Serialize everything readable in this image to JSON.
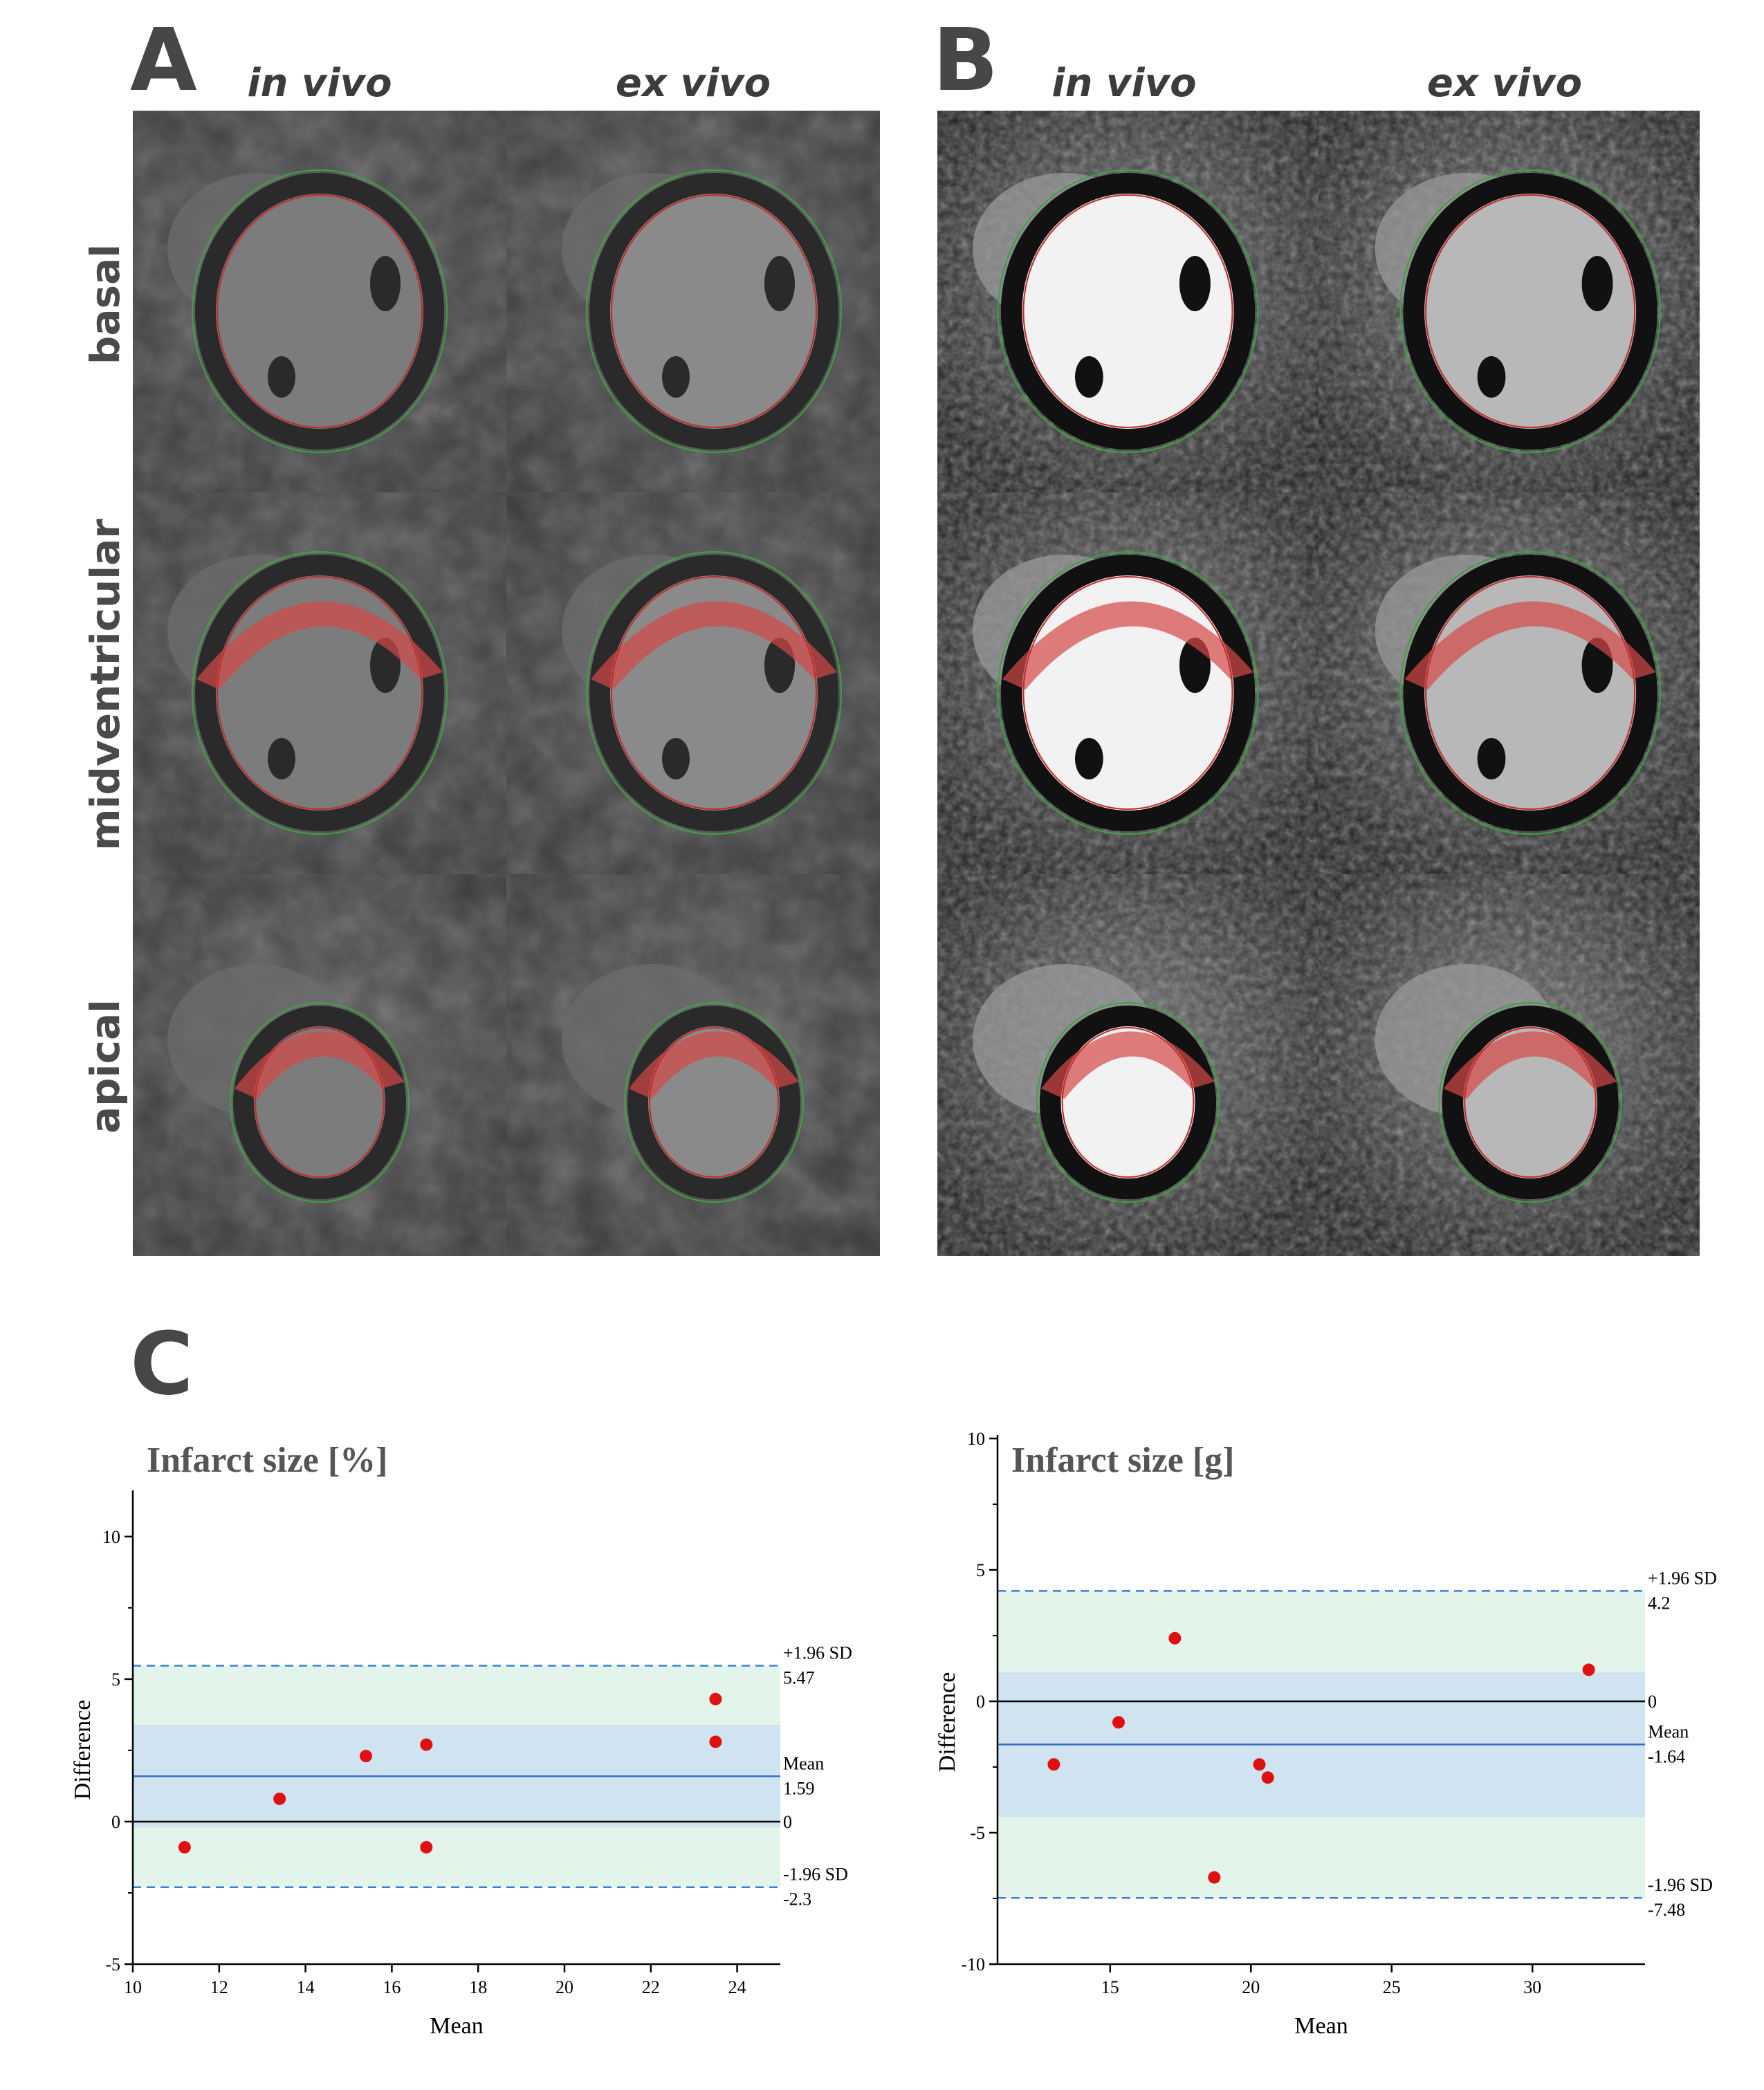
{
  "panels": {
    "A": {
      "letter": "A",
      "columns": [
        "in vivo",
        "ex vivo"
      ],
      "rows": [
        "basal",
        "midventricular",
        "apical"
      ]
    },
    "B": {
      "letter": "B",
      "columns": [
        "in vivo",
        "ex vivo"
      ]
    },
    "C": {
      "letter": "C"
    }
  },
  "colors": {
    "epicardial_contour": "#3fa33f",
    "endocardial_contour": "#c42a2a",
    "infarct": "#d44848",
    "points": "#e01010",
    "limit_line": "#3c7ed6",
    "mean_line": "#2f6fc9",
    "loa_band": "#e3f4ea",
    "mean_ci_band": "#cfe3f1"
  },
  "chart_data": [
    {
      "type": "scatter",
      "title": "Infarct size [%]",
      "xlabel": "Mean",
      "ylabel": "Difference",
      "xlim": [
        10,
        25
      ],
      "ylim": [
        -5,
        11.5
      ],
      "xticks": [
        10,
        12,
        14,
        16,
        18,
        20,
        22,
        24
      ],
      "yticks": [
        -5,
        0,
        5,
        10
      ],
      "points": [
        {
          "x": 11.2,
          "y": -0.9
        },
        {
          "x": 13.4,
          "y": 0.8
        },
        {
          "x": 15.4,
          "y": 2.3
        },
        {
          "x": 16.8,
          "y": 2.7
        },
        {
          "x": 16.8,
          "y": -0.9
        },
        {
          "x": 23.5,
          "y": 4.3
        },
        {
          "x": 23.5,
          "y": 2.8
        }
      ],
      "zero": 0,
      "mean": 1.59,
      "upper_loa": 5.47,
      "lower_loa": -2.3,
      "mean_ci": [
        -0.2,
        3.4
      ],
      "labels": {
        "upper_name": "+1.96 SD",
        "upper_value": "5.47",
        "mean_name": "Mean",
        "mean_value": "1.59",
        "zero_value": "0",
        "lower_name": "-1.96 SD",
        "lower_value": "-2.3"
      }
    },
    {
      "type": "scatter",
      "title": "Infarct size [g]",
      "xlabel": "Mean",
      "ylabel": "Difference",
      "xlim": [
        11,
        34
      ],
      "ylim": [
        -10,
        10
      ],
      "xticks": [
        15,
        20,
        25,
        30
      ],
      "yticks": [
        -10,
        -5,
        0,
        5,
        10
      ],
      "points": [
        {
          "x": 13.0,
          "y": -2.4
        },
        {
          "x": 15.3,
          "y": -0.8
        },
        {
          "x": 17.3,
          "y": 2.4
        },
        {
          "x": 18.7,
          "y": -6.7
        },
        {
          "x": 20.3,
          "y": -2.4
        },
        {
          "x": 20.6,
          "y": -2.9
        },
        {
          "x": 32.0,
          "y": 1.2
        }
      ],
      "zero": 0,
      "mean": -1.64,
      "upper_loa": 4.2,
      "lower_loa": -7.48,
      "mean_ci": [
        -4.4,
        1.1
      ],
      "labels": {
        "upper_name": "+1.96 SD",
        "upper_value": "4.2",
        "mean_name": "Mean",
        "mean_value": "-1.64",
        "zero_value": "0",
        "lower_name": "-1.96 SD",
        "lower_value": "-7.48"
      }
    }
  ]
}
